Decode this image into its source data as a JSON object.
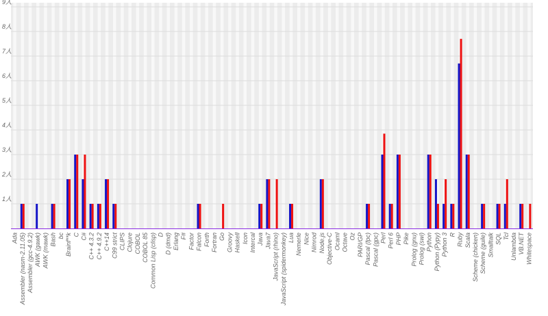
{
  "chart_data": {
    "type": "bar",
    "categories": [
      "Ada",
      "Assembler (nasm-2.11.05)",
      "Assembler (gcc-4.9.2)",
      "AWK (gawk)",
      "AWK (mawk)",
      "Bash",
      "bc",
      "Brainf**k",
      "C",
      "C#",
      "C++ 4.3.2",
      "C++ 4.9.2",
      "C++14",
      "C99 strict",
      "CLIPS",
      "Clojure",
      "COBOL",
      "COBOL 85",
      "Common Lisp (clisp)",
      "D",
      "D (dmd)",
      "Erlang",
      "F#",
      "Factor",
      "Falcon",
      "Forth",
      "Fortran",
      "Go",
      "Groovy",
      "Haskell",
      "Icon",
      "Intercal",
      "Java",
      "Java7",
      "JavaScript (rhino)",
      "JavaScript (spidermonkey)",
      "Lua",
      "Nemerle",
      "Nice",
      "Nimrod",
      "Node.js",
      "Objective-C",
      "Ocaml",
      "Octave",
      "Oz",
      "PARI/GP",
      "Pascal (fpc)",
      "Pascal (gpc)",
      "Perl",
      "Perl 6",
      "PHP",
      "Pike",
      "Prolog (gnu)",
      "Prolog (swi)",
      "Python",
      "Python (Pypy)",
      "Python 3",
      "R",
      "Ruby",
      "Scala",
      "Scheme (chicken)",
      "Scheme (guile)",
      "Smalltalk",
      "SQL",
      "Tcl",
      "Unlambda",
      "VB.NET",
      "Whitespace"
    ],
    "series": [
      {
        "color": "#1414c8",
        "values": [
          0,
          1,
          0,
          1,
          0,
          1,
          0,
          2,
          3,
          2,
          1,
          1,
          2,
          1,
          0,
          0,
          0,
          0,
          0,
          0,
          0,
          0,
          0,
          0,
          1,
          0,
          0,
          0,
          0,
          0,
          0,
          0,
          1,
          2,
          0,
          0,
          1,
          0,
          0,
          0,
          2,
          0,
          0,
          0,
          0,
          0,
          1,
          0,
          3,
          1,
          3,
          0,
          0,
          0,
          3,
          2,
          1,
          1,
          6.7,
          3,
          0,
          1,
          0,
          1,
          1,
          0,
          1,
          0
        ]
      },
      {
        "color": "#ee1111",
        "values": [
          0,
          1,
          0,
          0,
          0,
          1,
          0,
          2,
          3,
          3,
          1,
          1,
          2,
          1,
          0,
          0,
          0,
          0,
          0,
          0,
          0,
          0,
          0,
          0,
          1,
          0,
          0,
          1,
          0,
          0,
          0,
          0,
          1,
          2,
          2,
          0,
          1,
          0,
          0,
          0,
          2,
          0,
          0,
          0,
          0,
          0,
          1,
          0,
          3.85,
          1,
          3,
          0,
          0,
          0,
          3,
          1,
          2,
          1,
          7.7,
          3,
          0,
          1,
          0,
          1,
          2,
          0,
          1,
          1
        ]
      }
    ],
    "ylim": [
      0,
      9
    ],
    "yticks": [
      {
        "value": 1,
        "label": "1人"
      },
      {
        "value": 2,
        "label": "2人"
      },
      {
        "value": 3,
        "label": "3人"
      },
      {
        "value": 4,
        "label": "4人"
      },
      {
        "value": 5,
        "label": "5人"
      },
      {
        "value": 6,
        "label": "6人"
      },
      {
        "value": 7,
        "label": "7人"
      },
      {
        "value": 8,
        "label": "8人"
      },
      {
        "value": 9,
        "label": "9人"
      }
    ],
    "grid": true
  }
}
